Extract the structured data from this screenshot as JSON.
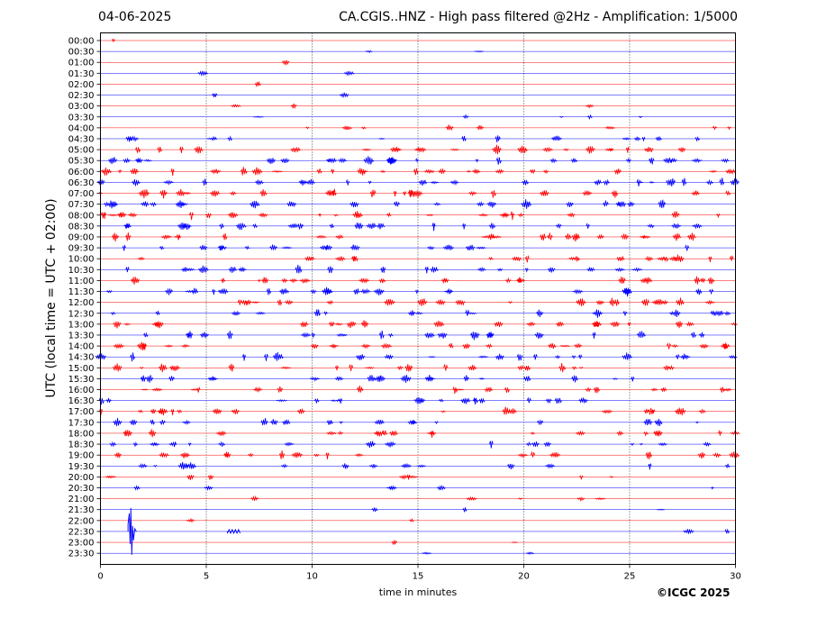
{
  "header": {
    "date": "04-06-2025",
    "title": "CA.CGIS..HNZ - High pass filtered @2Hz - Amplification: 1/5000"
  },
  "copyright": "©ICGC 2025",
  "chart_data": {
    "type": "line",
    "title": "CA.CGIS..HNZ - High pass filtered @2Hz - Amplification: 1/5000",
    "xlabel": "time in minutes",
    "ylabel": "UTC (local time = UTC + 02:00)",
    "xlim": [
      0,
      30
    ],
    "xticks": [
      0,
      5,
      10,
      15,
      20,
      25,
      30
    ],
    "vertical_gridlines": [
      5,
      10,
      15,
      20,
      25
    ],
    "grid": "vertical dotted",
    "trace_colors": [
      "#ff0000",
      "#0000ff"
    ],
    "rows": [
      "00:00",
      "00:30",
      "01:00",
      "01:30",
      "02:00",
      "02:30",
      "03:00",
      "03:30",
      "04:00",
      "04:30",
      "05:00",
      "05:30",
      "06:00",
      "06:30",
      "07:00",
      "07:30",
      "08:00",
      "08:30",
      "09:00",
      "09:30",
      "10:00",
      "10:30",
      "11:00",
      "11:30",
      "12:00",
      "12:30",
      "13:00",
      "13:30",
      "14:00",
      "14:30",
      "15:00",
      "15:30",
      "16:00",
      "16:30",
      "17:00",
      "17:30",
      "18:00",
      "18:30",
      "19:00",
      "19:30",
      "20:00",
      "20:30",
      "21:00",
      "21:30",
      "22:00",
      "22:30",
      "23:00",
      "23:30"
    ],
    "activity": [
      0.02,
      0.05,
      0.02,
      0.04,
      0.02,
      0.04,
      0.08,
      0.12,
      0.2,
      0.35,
      0.55,
      0.6,
      0.6,
      0.62,
      0.6,
      0.55,
      0.6,
      0.55,
      0.55,
      0.45,
      0.45,
      0.5,
      0.5,
      0.55,
      0.55,
      0.5,
      0.5,
      0.55,
      0.55,
      0.5,
      0.5,
      0.5,
      0.45,
      0.45,
      0.5,
      0.45,
      0.5,
      0.5,
      0.45,
      0.35,
      0.2,
      0.15,
      0.12,
      0.08,
      0.05,
      0.04,
      0.05,
      0.04
    ],
    "events": [
      {
        "row": "22:30",
        "start_min": 1.3,
        "end_min": 1.7,
        "description": "large spike"
      },
      {
        "row": "22:30",
        "start_min": 6.0,
        "end_min": 6.6,
        "description": "small burst"
      }
    ]
  }
}
